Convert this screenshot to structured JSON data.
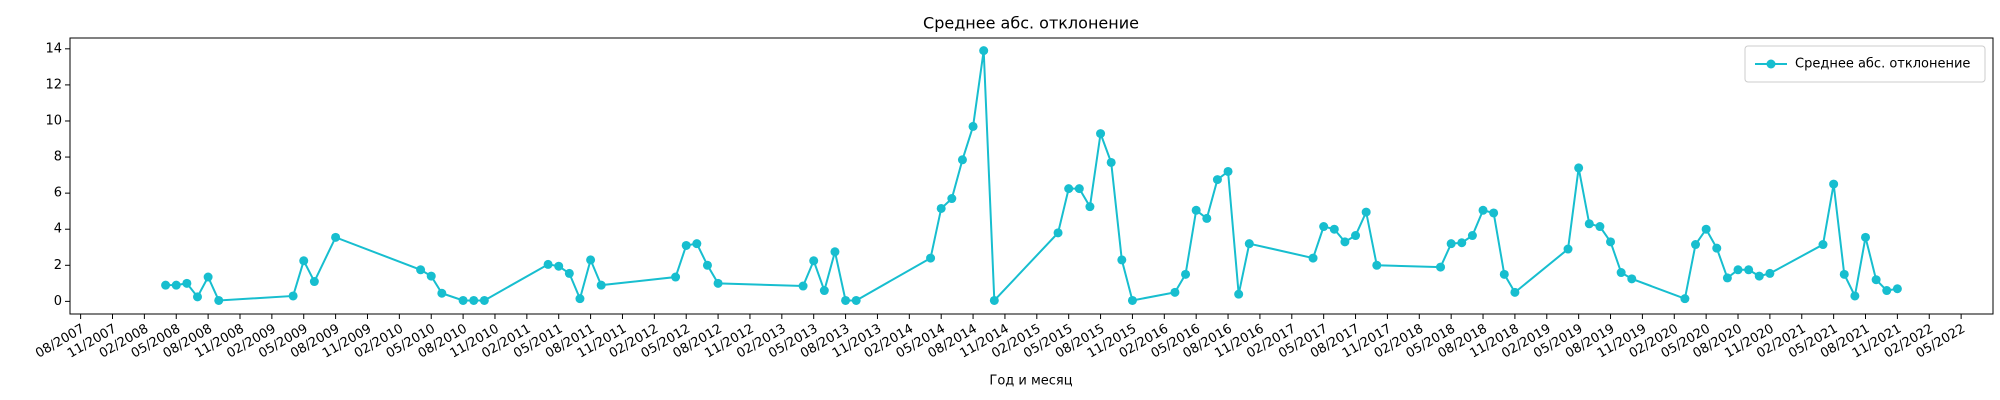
{
  "chart_data": {
    "type": "line",
    "title": "Среднее абс. отклонение",
    "x_label": "Год и месяц",
    "x": [
      "2008-04",
      "2008-05",
      "2008-06",
      "2008-07",
      "2008-08",
      "2008-09",
      "2009-04",
      "2009-05",
      "2009-06",
      "2009-08",
      "2010-04",
      "2010-05",
      "2010-06",
      "2010-08",
      "2010-09",
      "2010-10",
      "2011-04",
      "2011-05",
      "2011-06",
      "2011-07",
      "2011-08",
      "2011-09",
      "2012-04",
      "2012-05",
      "2012-06",
      "2012-07",
      "2012-08",
      "2013-04",
      "2013-05",
      "2013-06",
      "2013-07",
      "2013-08",
      "2013-09",
      "2014-04",
      "2014-05",
      "2014-06",
      "2014-07",
      "2014-08",
      "2014-09",
      "2014-10",
      "2015-04",
      "2015-05",
      "2015-06",
      "2015-07",
      "2015-08",
      "2015-09",
      "2015-10",
      "2015-11",
      "2016-03",
      "2016-04",
      "2016-05",
      "2016-06",
      "2016-07",
      "2016-08",
      "2016-09",
      "2016-10",
      "2017-04",
      "2017-05",
      "2017-06",
      "2017-07",
      "2017-08",
      "2017-09",
      "2017-10",
      "2018-04",
      "2018-05",
      "2018-06",
      "2018-07",
      "2018-08",
      "2018-09",
      "2018-10",
      "2018-11",
      "2019-04",
      "2019-05",
      "2019-06",
      "2019-07",
      "2019-08",
      "2019-09",
      "2019-10",
      "2020-03",
      "2020-04",
      "2020-05",
      "2020-06",
      "2020-07",
      "2020-08",
      "2020-09",
      "2020-10",
      "2020-11",
      "2021-04",
      "2021-05",
      "2021-06",
      "2021-07",
      "2021-08",
      "2021-09",
      "2021-10",
      "2021-11"
    ],
    "series": [
      {
        "name": "Среднее абс. отклонение",
        "color": "#17becf",
        "values": [
          0.9,
          0.9,
          1.0,
          0.25,
          1.35,
          0.05,
          0.3,
          2.25,
          1.1,
          3.55,
          1.75,
          1.4,
          0.45,
          0.05,
          0.05,
          0.05,
          2.05,
          1.95,
          1.55,
          0.15,
          2.3,
          0.9,
          1.35,
          3.1,
          3.2,
          2.0,
          1.0,
          0.85,
          2.25,
          0.6,
          2.75,
          0.05,
          0.05,
          2.4,
          5.15,
          5.7,
          7.85,
          9.7,
          13.9,
          0.05,
          3.8,
          6.25,
          6.25,
          5.25,
          9.3,
          7.7,
          2.3,
          0.05,
          0.5,
          1.5,
          5.05,
          4.6,
          6.75,
          7.2,
          0.4,
          3.2,
          2.4,
          4.15,
          4.0,
          3.3,
          3.65,
          4.95,
          2.0,
          1.9,
          3.2,
          3.25,
          3.65,
          5.05,
          4.9,
          1.5,
          0.5,
          2.9,
          7.4,
          4.3,
          4.15,
          3.3,
          1.6,
          1.25,
          0.15,
          3.15,
          4.0,
          2.95,
          1.3,
          1.75,
          1.75,
          1.4,
          1.55,
          3.15,
          6.5,
          1.5,
          0.3,
          3.55,
          1.2,
          0.6,
          0.7
        ]
      }
    ],
    "xlim": [
      "2007-07",
      "2022-08"
    ],
    "xticks": [
      {
        "value": "2007-08",
        "label": "08/2007"
      },
      {
        "value": "2007-11",
        "label": "11/2007"
      },
      {
        "value": "2008-02",
        "label": "02/2008"
      },
      {
        "value": "2008-05",
        "label": "05/2008"
      },
      {
        "value": "2008-08",
        "label": "08/2008"
      },
      {
        "value": "2008-11",
        "label": "11/2008"
      },
      {
        "value": "2009-02",
        "label": "02/2009"
      },
      {
        "value": "2009-05",
        "label": "05/2009"
      },
      {
        "value": "2009-08",
        "label": "08/2009"
      },
      {
        "value": "2009-11",
        "label": "11/2009"
      },
      {
        "value": "2010-02",
        "label": "02/2010"
      },
      {
        "value": "2010-05",
        "label": "05/2010"
      },
      {
        "value": "2010-08",
        "label": "08/2010"
      },
      {
        "value": "2010-11",
        "label": "11/2010"
      },
      {
        "value": "2011-02",
        "label": "02/2011"
      },
      {
        "value": "2011-05",
        "label": "05/2011"
      },
      {
        "value": "2011-08",
        "label": "08/2011"
      },
      {
        "value": "2011-11",
        "label": "11/2011"
      },
      {
        "value": "2012-02",
        "label": "02/2012"
      },
      {
        "value": "2012-05",
        "label": "05/2012"
      },
      {
        "value": "2012-08",
        "label": "08/2012"
      },
      {
        "value": "2012-11",
        "label": "11/2012"
      },
      {
        "value": "2013-02",
        "label": "02/2013"
      },
      {
        "value": "2013-05",
        "label": "05/2013"
      },
      {
        "value": "2013-08",
        "label": "08/2013"
      },
      {
        "value": "2013-11",
        "label": "11/2013"
      },
      {
        "value": "2014-02",
        "label": "02/2014"
      },
      {
        "value": "2014-05",
        "label": "05/2014"
      },
      {
        "value": "2014-08",
        "label": "08/2014"
      },
      {
        "value": "2014-11",
        "label": "11/2014"
      },
      {
        "value": "2015-02",
        "label": "02/2015"
      },
      {
        "value": "2015-05",
        "label": "05/2015"
      },
      {
        "value": "2015-08",
        "label": "08/2015"
      },
      {
        "value": "2015-11",
        "label": "11/2015"
      },
      {
        "value": "2016-02",
        "label": "02/2016"
      },
      {
        "value": "2016-05",
        "label": "05/2016"
      },
      {
        "value": "2016-08",
        "label": "08/2016"
      },
      {
        "value": "2016-11",
        "label": "11/2016"
      },
      {
        "value": "2017-02",
        "label": "02/2017"
      },
      {
        "value": "2017-05",
        "label": "05/2017"
      },
      {
        "value": "2017-08",
        "label": "08/2017"
      },
      {
        "value": "2017-11",
        "label": "11/2017"
      },
      {
        "value": "2018-02",
        "label": "02/2018"
      },
      {
        "value": "2018-05",
        "label": "05/2018"
      },
      {
        "value": "2018-08",
        "label": "08/2018"
      },
      {
        "value": "2018-11",
        "label": "11/2018"
      },
      {
        "value": "2019-02",
        "label": "02/2019"
      },
      {
        "value": "2019-05",
        "label": "05/2019"
      },
      {
        "value": "2019-08",
        "label": "08/2019"
      },
      {
        "value": "2019-11",
        "label": "11/2019"
      },
      {
        "value": "2020-02",
        "label": "02/2020"
      },
      {
        "value": "2020-05",
        "label": "05/2020"
      },
      {
        "value": "2020-08",
        "label": "08/2020"
      },
      {
        "value": "2020-11",
        "label": "11/2020"
      },
      {
        "value": "2021-02",
        "label": "02/2021"
      },
      {
        "value": "2021-05",
        "label": "05/2021"
      },
      {
        "value": "2021-08",
        "label": "08/2021"
      },
      {
        "value": "2021-11",
        "label": "11/2021"
      },
      {
        "value": "2022-02",
        "label": "02/2022"
      },
      {
        "value": "2022-05",
        "label": "05/2022"
      }
    ],
    "ylim": [
      -0.7,
      14.6
    ],
    "yticks": [
      0,
      2,
      4,
      6,
      8,
      10,
      12,
      14
    ],
    "grid": false,
    "legend": "upper right"
  }
}
